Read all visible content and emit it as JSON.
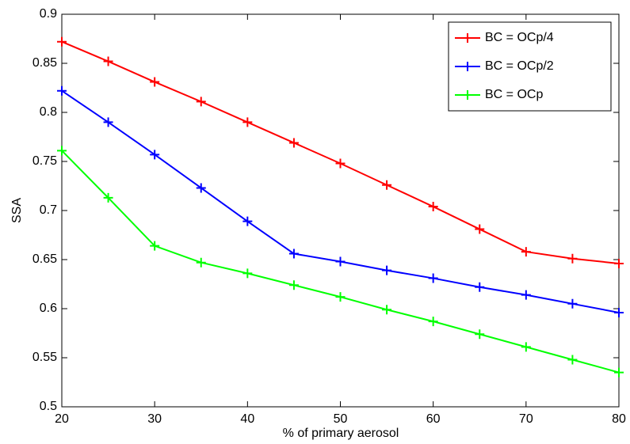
{
  "chart_data": {
    "type": "line",
    "x_label": "% of primary aerosol",
    "y_label": "SSA",
    "x": [
      20,
      25,
      30,
      35,
      40,
      45,
      50,
      55,
      60,
      65,
      70,
      75,
      80
    ],
    "series": [
      {
        "name": "BC = OCp/4",
        "color": "#ff0000",
        "values": [
          0.872,
          0.852,
          0.831,
          0.811,
          0.79,
          0.769,
          0.748,
          0.726,
          0.704,
          0.681,
          0.658,
          0.651,
          0.646
        ]
      },
      {
        "name": "BC = OCp/2",
        "color": "#0000ff",
        "values": [
          0.822,
          0.79,
          0.757,
          0.723,
          0.689,
          0.656,
          0.648,
          0.639,
          0.631,
          0.622,
          0.614,
          0.605,
          0.596
        ]
      },
      {
        "name": "BC = OCp",
        "color": "#00ff00",
        "values": [
          0.761,
          0.713,
          0.664,
          0.647,
          0.636,
          0.624,
          0.612,
          0.599,
          0.587,
          0.574,
          0.561,
          0.548,
          0.535
        ]
      }
    ],
    "xlim": [
      20,
      80
    ],
    "xticks": [
      20,
      30,
      40,
      50,
      60,
      70,
      80
    ],
    "ylim": [
      0.5,
      0.9
    ],
    "yticks": [
      0.5,
      0.55,
      0.6,
      0.65,
      0.7,
      0.75,
      0.8,
      0.85,
      0.9
    ],
    "grid": false,
    "legend": "upper-right"
  }
}
